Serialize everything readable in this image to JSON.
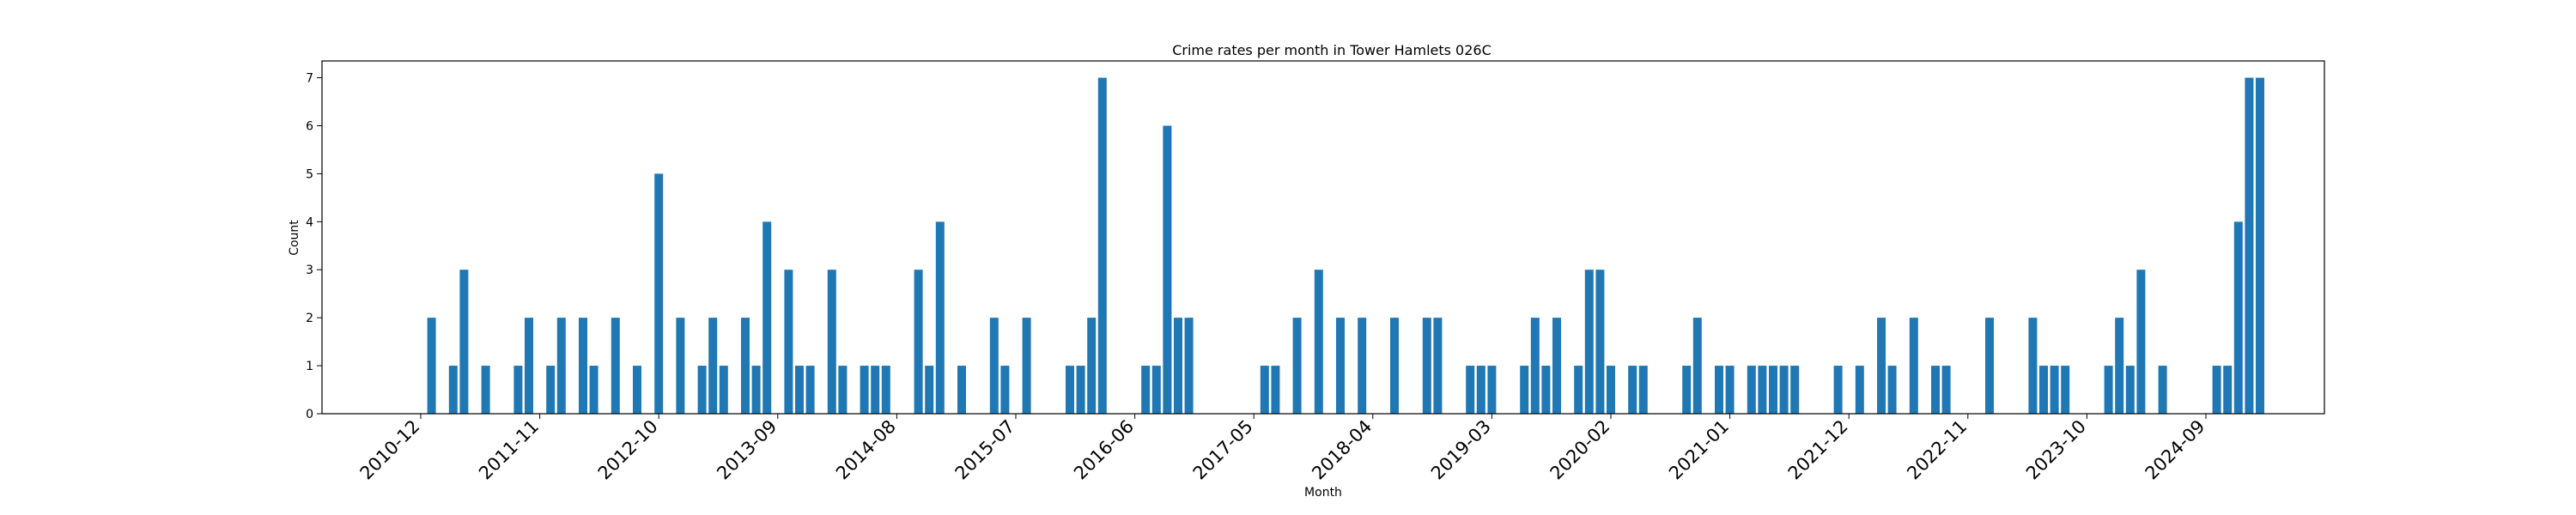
{
  "chart_data": {
    "type": "bar",
    "title": "Crime rates per month in Tower Hamlets 026C",
    "xlabel": "Month",
    "ylabel": "Count",
    "ylim": [
      0,
      7.35
    ],
    "yticks": [
      0,
      1,
      2,
      3,
      4,
      5,
      6,
      7
    ],
    "x_start": "2010-12",
    "xticks": [
      "2010-12",
      "2011-11",
      "2012-10",
      "2013-09",
      "2014-08",
      "2015-07",
      "2016-06",
      "2017-05",
      "2018-04",
      "2019-03",
      "2020-02",
      "2021-01",
      "2021-12",
      "2022-11",
      "2023-10",
      "2024-09"
    ],
    "bar_color": "#1f77b4",
    "grid": false,
    "bars": [
      {
        "x": "2011-01",
        "y": 2
      },
      {
        "x": "2011-03",
        "y": 1
      },
      {
        "x": "2011-04",
        "y": 3
      },
      {
        "x": "2011-06",
        "y": 1
      },
      {
        "x": "2011-09",
        "y": 1
      },
      {
        "x": "2011-10",
        "y": 2
      },
      {
        "x": "2011-12",
        "y": 1
      },
      {
        "x": "2012-01",
        "y": 2
      },
      {
        "x": "2012-03",
        "y": 2
      },
      {
        "x": "2012-04",
        "y": 1
      },
      {
        "x": "2012-06",
        "y": 2
      },
      {
        "x": "2012-08",
        "y": 1
      },
      {
        "x": "2012-10",
        "y": 5
      },
      {
        "x": "2012-12",
        "y": 2
      },
      {
        "x": "2013-02",
        "y": 1
      },
      {
        "x": "2013-03",
        "y": 2
      },
      {
        "x": "2013-04",
        "y": 1
      },
      {
        "x": "2013-06",
        "y": 2
      },
      {
        "x": "2013-07",
        "y": 1
      },
      {
        "x": "2013-08",
        "y": 4
      },
      {
        "x": "2013-10",
        "y": 3
      },
      {
        "x": "2013-11",
        "y": 1
      },
      {
        "x": "2013-12",
        "y": 1
      },
      {
        "x": "2014-02",
        "y": 3
      },
      {
        "x": "2014-03",
        "y": 1
      },
      {
        "x": "2014-05",
        "y": 1
      },
      {
        "x": "2014-06",
        "y": 1
      },
      {
        "x": "2014-07",
        "y": 1
      },
      {
        "x": "2014-10",
        "y": 3
      },
      {
        "x": "2014-11",
        "y": 1
      },
      {
        "x": "2014-12",
        "y": 4
      },
      {
        "x": "2015-02",
        "y": 1
      },
      {
        "x": "2015-05",
        "y": 2
      },
      {
        "x": "2015-06",
        "y": 1
      },
      {
        "x": "2015-08",
        "y": 2
      },
      {
        "x": "2015-12",
        "y": 1
      },
      {
        "x": "2016-01",
        "y": 1
      },
      {
        "x": "2016-02",
        "y": 2
      },
      {
        "x": "2016-03",
        "y": 7
      },
      {
        "x": "2016-07",
        "y": 1
      },
      {
        "x": "2016-08",
        "y": 1
      },
      {
        "x": "2016-09",
        "y": 6
      },
      {
        "x": "2016-10",
        "y": 2
      },
      {
        "x": "2016-11",
        "y": 2
      },
      {
        "x": "2017-06",
        "y": 1
      },
      {
        "x": "2017-07",
        "y": 1
      },
      {
        "x": "2017-09",
        "y": 2
      },
      {
        "x": "2017-11",
        "y": 3
      },
      {
        "x": "2018-01",
        "y": 2
      },
      {
        "x": "2018-03",
        "y": 2
      },
      {
        "x": "2018-06",
        "y": 2
      },
      {
        "x": "2018-09",
        "y": 2
      },
      {
        "x": "2018-10",
        "y": 2
      },
      {
        "x": "2019-01",
        "y": 1
      },
      {
        "x": "2019-02",
        "y": 1
      },
      {
        "x": "2019-03",
        "y": 1
      },
      {
        "x": "2019-06",
        "y": 1
      },
      {
        "x": "2019-07",
        "y": 2
      },
      {
        "x": "2019-08",
        "y": 1
      },
      {
        "x": "2019-09",
        "y": 2
      },
      {
        "x": "2019-11",
        "y": 1
      },
      {
        "x": "2019-12",
        "y": 3
      },
      {
        "x": "2020-01",
        "y": 3
      },
      {
        "x": "2020-02",
        "y": 1
      },
      {
        "x": "2020-04",
        "y": 1
      },
      {
        "x": "2020-05",
        "y": 1
      },
      {
        "x": "2020-09",
        "y": 1
      },
      {
        "x": "2020-10",
        "y": 2
      },
      {
        "x": "2020-12",
        "y": 1
      },
      {
        "x": "2021-01",
        "y": 1
      },
      {
        "x": "2021-03",
        "y": 1
      },
      {
        "x": "2021-04",
        "y": 1
      },
      {
        "x": "2021-05",
        "y": 1
      },
      {
        "x": "2021-06",
        "y": 1
      },
      {
        "x": "2021-07",
        "y": 1
      },
      {
        "x": "2021-11",
        "y": 1
      },
      {
        "x": "2022-01",
        "y": 1
      },
      {
        "x": "2022-03",
        "y": 2
      },
      {
        "x": "2022-04",
        "y": 1
      },
      {
        "x": "2022-06",
        "y": 2
      },
      {
        "x": "2022-08",
        "y": 1
      },
      {
        "x": "2022-09",
        "y": 1
      },
      {
        "x": "2023-01",
        "y": 2
      },
      {
        "x": "2023-05",
        "y": 2
      },
      {
        "x": "2023-06",
        "y": 1
      },
      {
        "x": "2023-07",
        "y": 1
      },
      {
        "x": "2023-08",
        "y": 1
      },
      {
        "x": "2023-12",
        "y": 1
      },
      {
        "x": "2024-01",
        "y": 2
      },
      {
        "x": "2024-02",
        "y": 1
      },
      {
        "x": "2024-03",
        "y": 3
      },
      {
        "x": "2024-05",
        "y": 1
      },
      {
        "x": "2024-10",
        "y": 1
      },
      {
        "x": "2024-11",
        "y": 1
      },
      {
        "x": "2024-12",
        "y": 4
      },
      {
        "x": "2025-01",
        "y": 7
      },
      {
        "x": "2025-02",
        "y": 7
      }
    ]
  }
}
